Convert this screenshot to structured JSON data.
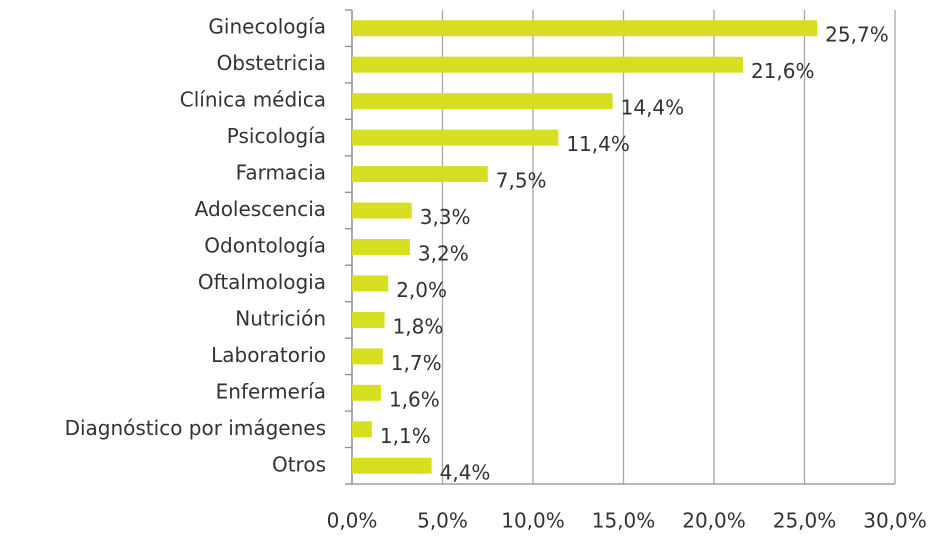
{
  "chart_data": {
    "type": "bar",
    "orientation": "horizontal",
    "categories": [
      "Ginecología",
      "Obstetricia",
      "Clínica médica",
      "Psicología",
      "Farmacia",
      "Adolescencia",
      "Odontología",
      "Oftalmologia",
      "Nutrición",
      "Laboratorio",
      "Enfermería",
      "Diagnóstico por imágenes",
      "Otros"
    ],
    "values": [
      25.7,
      21.6,
      14.4,
      11.4,
      7.5,
      3.3,
      3.2,
      2.0,
      1.8,
      1.7,
      1.6,
      1.1,
      4.4
    ],
    "value_labels": [
      "25,7%",
      "21,6%",
      "14,4%",
      "11,4%",
      "7,5%",
      "3,3%",
      "3,2%",
      "2,0%",
      "1,8%",
      "1,7%",
      "1,6%",
      "1,1%",
      "4,4%"
    ],
    "color": "#d7df23",
    "xlim": [
      0,
      30
    ],
    "xticks": [
      {
        "value": 0,
        "label": "0,0%"
      },
      {
        "value": 5,
        "label": "5,0%"
      },
      {
        "value": 10,
        "label": "10,0%"
      },
      {
        "value": 15,
        "label": "15,0%"
      },
      {
        "value": 20,
        "label": "20,0%"
      },
      {
        "value": 25,
        "label": "25,0%"
      },
      {
        "value": 30,
        "label": "30,0%"
      }
    ],
    "grid": true
  }
}
